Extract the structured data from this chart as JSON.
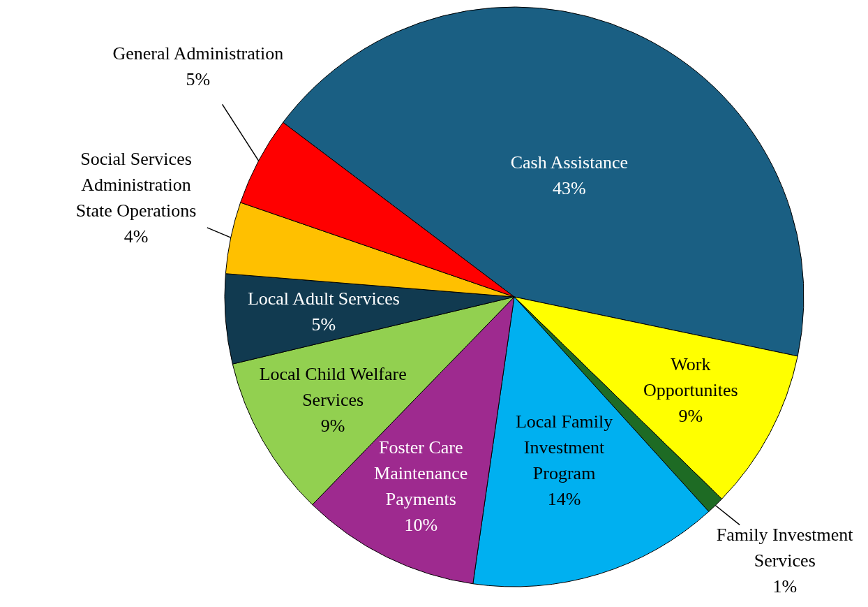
{
  "chart_data": {
    "type": "pie",
    "categories": [
      "Cash Assistance",
      "Work Opportunites",
      "Family Investment Services",
      "Local Family Investment Program",
      "Foster Care Maintenance Payments",
      "Local Child Welfare Services",
      "Local Adult Services",
      "Social Services Administration State Operations",
      "General Administration"
    ],
    "values": [
      43,
      9,
      1,
      14,
      10,
      9,
      5,
      4,
      5
    ],
    "colors": [
      "#1a5f83",
      "#ffff00",
      "#1e6b24",
      "#00b0f0",
      "#9e2a8f",
      "#92d050",
      "#113a50",
      "#ffc000",
      "#ff0000"
    ],
    "value_labels": [
      "43%",
      "9%",
      "1%",
      "14%",
      "10%",
      "9%",
      "5%",
      "4%",
      "5%"
    ]
  }
}
